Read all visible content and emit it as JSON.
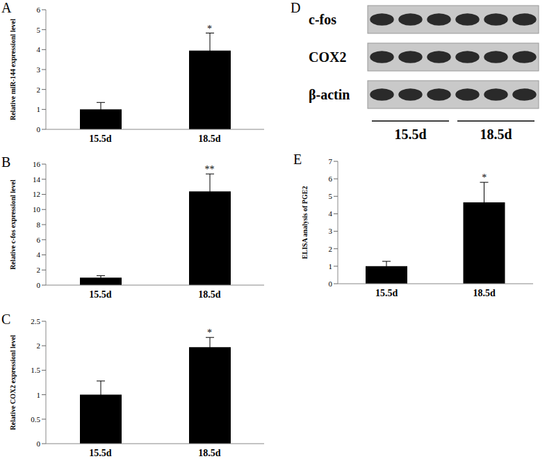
{
  "chart_data": [
    {
      "type": "bar",
      "panel": "A",
      "categories": [
        "15.5d",
        "18.5d"
      ],
      "values": [
        1,
        3.95
      ],
      "errors": [
        0.35,
        0.88
      ],
      "y_label": "Relative miR-144 expressionl level",
      "ylim": [
        0,
        6
      ],
      "yticks": [
        0,
        1,
        2,
        3,
        4,
        5,
        6
      ],
      "color": "#000000",
      "annotations": [
        {
          "category": "18.5d",
          "text": "*"
        }
      ]
    },
    {
      "type": "bar",
      "panel": "B",
      "categories": [
        "15.5d",
        "18.5d"
      ],
      "values": [
        1,
        12.4
      ],
      "errors": [
        0.25,
        2.3
      ],
      "y_label": "Relative c-fos expressionl level",
      "ylim": [
        0,
        16
      ],
      "yticks": [
        0,
        2,
        4,
        6,
        8,
        10,
        12,
        14,
        16
      ],
      "color": "#000000",
      "annotations": [
        {
          "category": "18.5d",
          "text": "**"
        }
      ]
    },
    {
      "type": "bar",
      "panel": "C",
      "categories": [
        "15.5d",
        "18.5d"
      ],
      "values": [
        1,
        1.97
      ],
      "errors": [
        0.28,
        0.2
      ],
      "y_label": "Relative COX2 expressionl level",
      "ylim": [
        0,
        2.5
      ],
      "yticks": [
        0,
        0.5,
        1,
        1.5,
        2,
        2.5
      ],
      "color": "#000000",
      "annotations": [
        {
          "category": "18.5d",
          "text": "*"
        }
      ]
    },
    {
      "type": "western_blot",
      "panel": "D",
      "rows": [
        "c-fos",
        "COX2",
        "β-actin"
      ],
      "groups": [
        "15.5d",
        "18.5d"
      ],
      "lanes": [
        3,
        3
      ]
    },
    {
      "type": "bar",
      "panel": "E",
      "categories": [
        "15.5d",
        "18.5d"
      ],
      "values": [
        1,
        4.65
      ],
      "errors": [
        0.28,
        1.15
      ],
      "y_label": "ELISA analysis of PGE2",
      "ylim": [
        0,
        7
      ],
      "yticks": [
        0,
        1,
        2,
        3,
        4,
        5,
        6,
        7
      ],
      "color": "#000000",
      "annotations": [
        {
          "category": "18.5d",
          "text": "*"
        }
      ]
    }
  ]
}
